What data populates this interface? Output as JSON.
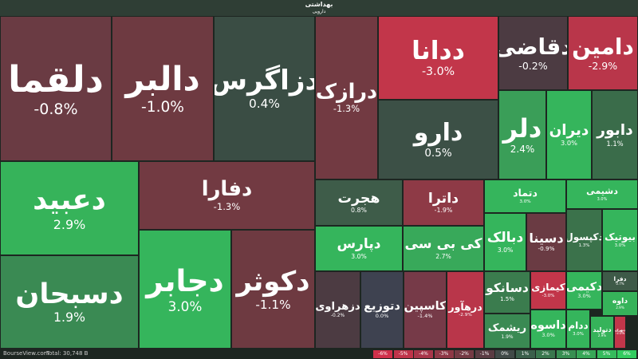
{
  "header": {
    "title": "بهداشتی",
    "subtitle": "دارویی"
  },
  "tiles": [
    {
      "name": "دلقما",
      "change": "-0.8%",
      "color": "#6a3b43"
    },
    {
      "name": "دالبر",
      "change": "-1.0%",
      "color": "#6e3a41"
    },
    {
      "name": "دزاگرس",
      "change": "0.4%",
      "color": "#3a4d44"
    },
    {
      "name": "درازک",
      "change": "-1.3%",
      "color": "#723a42"
    },
    {
      "name": "ددانا",
      "change": "-3.0%",
      "color": "#c2364a"
    },
    {
      "name": "دقاضی",
      "change": "-0.2%",
      "color": "#4c3b42"
    },
    {
      "name": "دامین",
      "change": "-2.9%",
      "color": "#b9364a"
    },
    {
      "name": "دارو",
      "change": "0.5%",
      "color": "#3c5046"
    },
    {
      "name": "دلر",
      "change": "2.4%",
      "color": "#3a9e58"
    },
    {
      "name": "دیران",
      "change": "3.0%",
      "color": "#35b55c"
    },
    {
      "name": "دابور",
      "change": "1.1%",
      "color": "#3a6c4a"
    },
    {
      "name": "دعبید",
      "change": "2.9%",
      "color": "#36b35a"
    },
    {
      "name": "دفارا",
      "change": "-1.3%",
      "color": "#723a42"
    },
    {
      "name": "هجرت",
      "change": "0.8%",
      "color": "#3e5c49"
    },
    {
      "name": "داترا",
      "change": "-1.9%",
      "color": "#8e3a46"
    },
    {
      "name": "دتماد",
      "change": "3.0%",
      "color": "#35b55c"
    },
    {
      "name": "دشیمی",
      "change": "3.0%",
      "color": "#35b55c"
    },
    {
      "name": "دسبحان",
      "change": "1.9%",
      "color": "#3a8a53"
    },
    {
      "name": "دجابر",
      "change": "3.0%",
      "color": "#35b55c"
    },
    {
      "name": "دکوثر",
      "change": "-1.1%",
      "color": "#6e3a41"
    },
    {
      "name": "دپارس",
      "change": "3.0%",
      "color": "#35b55c"
    },
    {
      "name": "کی بی سی",
      "change": "2.7%",
      "color": "#38a95a"
    },
    {
      "name": "دبالک",
      "change": "3.0%",
      "color": "#35b55c"
    },
    {
      "name": "دسینا",
      "change": "-0.9%",
      "color": "#6a3b43"
    },
    {
      "name": "دکپسول",
      "change": "1.3%",
      "color": "#3b724b"
    },
    {
      "name": "بیوتیک",
      "change": "3.0%",
      "color": "#35b55c"
    },
    {
      "name": "دزهراوی",
      "change": "-0.2%",
      "color": "#4c3b42"
    },
    {
      "name": "دتوزیع",
      "change": "0.0%",
      "color": "#3e4250"
    },
    {
      "name": "کاسپین",
      "change": "-1.4%",
      "color": "#763a48"
    },
    {
      "name": "درهآور",
      "change": "-2.9%",
      "color": "#b9364a"
    },
    {
      "name": "دسانکو",
      "change": "1.5%",
      "color": "#3b7c4e"
    },
    {
      "name": "کیمازی",
      "change": "-3.0%",
      "color": "#c2364a"
    },
    {
      "name": "دکیمی",
      "change": "3.0%",
      "color": "#35b55c"
    },
    {
      "name": "دفرا",
      "change": "0.7%",
      "color": "#3e5a48"
    },
    {
      "name": "داوه",
      "change": "2.9%",
      "color": "#36b35a"
    },
    {
      "name": "ریشمک",
      "change": "1.9%",
      "color": "#3a8a53"
    },
    {
      "name": "داسوه",
      "change": "3.0%",
      "color": "#35b55c"
    },
    {
      "name": "ددام",
      "change": "3.0%",
      "color": "#35b55c"
    },
    {
      "name": "دتولید",
      "change": "2.9%",
      "color": "#36b35a"
    },
    {
      "name": "دتهران",
      "change": "-3.0%",
      "color": "#c2364a"
    }
  ],
  "footer": {
    "site": "BourseView.com",
    "total": "Total: 30,748 B"
  },
  "legend": [
    {
      "label": "-6%",
      "color": "#d0304a"
    },
    {
      "label": "-5%",
      "color": "#c0344a"
    },
    {
      "label": "-4%",
      "color": "#a8364a"
    },
    {
      "label": "-3%",
      "color": "#8e3846"
    },
    {
      "label": "-2%",
      "color": "#743a44"
    },
    {
      "label": "-1%",
      "color": "#5a3c43"
    },
    {
      "label": "0%",
      "color": "#414a48"
    },
    {
      "label": "1%",
      "color": "#3b5f4b"
    },
    {
      "label": "2%",
      "color": "#3a774e"
    },
    {
      "label": "3%",
      "color": "#388f52"
    },
    {
      "label": "4%",
      "color": "#37a757"
    },
    {
      "label": "5%",
      "color": "#35bb5c"
    },
    {
      "label": "6%",
      "color": "#32cc5f"
    }
  ]
}
